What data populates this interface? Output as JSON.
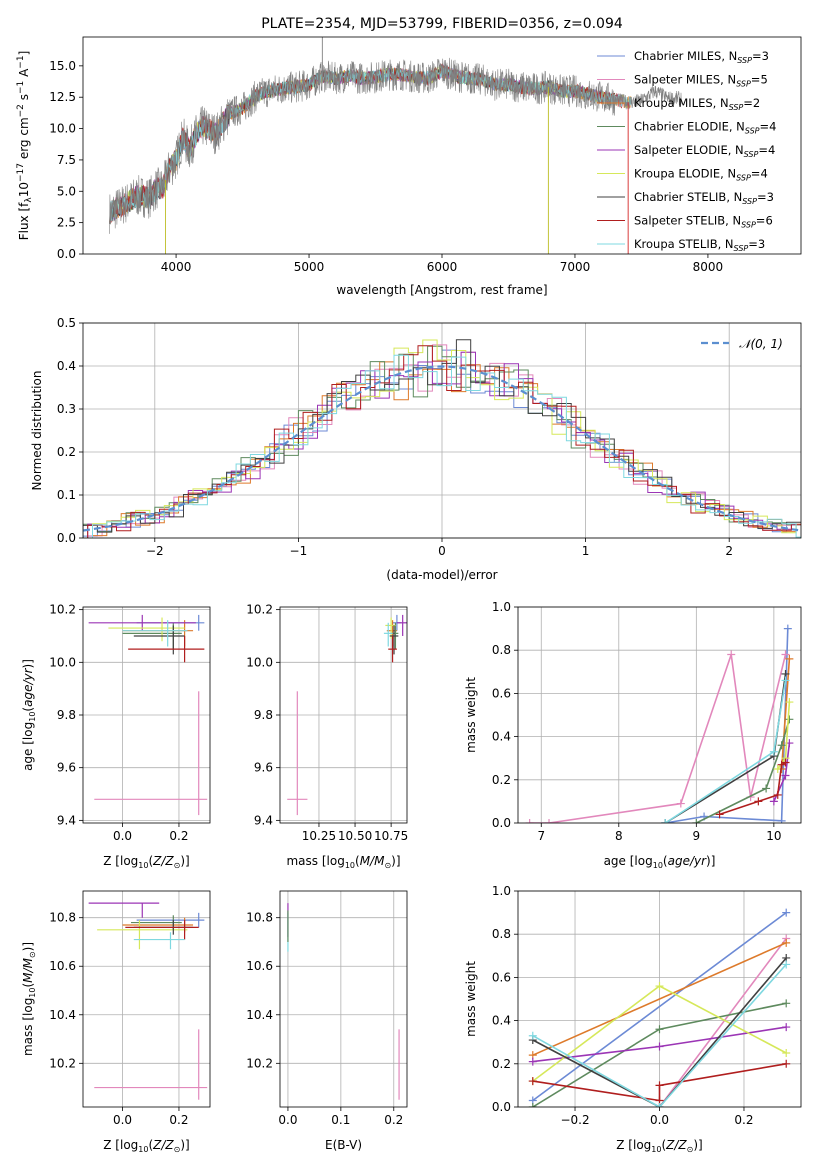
{
  "chart_data": [
    {
      "id": "spectrum",
      "type": "line",
      "title": "PLATE=2354, MJD=53799, FIBERID=0356, z=0.094",
      "xlabel": "wavelength [Angstrom, rest frame]",
      "ylabel": "Flux [f_λ 10^-17 erg cm^-2 s^-1 A^-1]",
      "xlim": [
        3300,
        8700
      ],
      "ylim": [
        0,
        17.3
      ],
      "xticks": [
        4000,
        5000,
        6000,
        7000,
        8000
      ],
      "yticks": [
        0.0,
        2.5,
        5.0,
        7.5,
        10.0,
        12.5,
        15.0
      ],
      "ytick_labels": [
        "0.0",
        "2.5",
        "5.0",
        "7.5",
        "10.0",
        "12.5",
        "15.0"
      ],
      "grid": false,
      "legend_position": "top-right",
      "data_series": {
        "name": "data",
        "color": "#808080"
      },
      "continuum_x": [
        3500,
        3550,
        3600,
        3650,
        3700,
        3750,
        3800,
        3850,
        3900,
        3950,
        4000,
        4050,
        4100,
        4150,
        4200,
        4300,
        4400,
        4500,
        4600,
        4700,
        4800,
        4900,
        5000,
        5100,
        5200,
        5300,
        5400,
        5500,
        5600,
        5700,
        5800,
        5900,
        6000,
        6100,
        6200,
        6300,
        6400,
        6500,
        6600,
        6700,
        6800,
        6900,
        7000,
        7100,
        7200,
        7300,
        7400,
        7500,
        7600,
        7700,
        7800
      ],
      "continuum_y": [
        3.3,
        3.6,
        3.9,
        4.2,
        4.6,
        4.6,
        4.5,
        5.2,
        5.3,
        6.8,
        7.5,
        9.3,
        8.3,
        9.5,
        10.2,
        9.6,
        11.2,
        11.6,
        12.6,
        13.0,
        13.2,
        13.3,
        13.5,
        14.2,
        14.0,
        14.2,
        14.0,
        14.1,
        14.3,
        14.3,
        14.1,
        14.0,
        14.6,
        14.2,
        14.0,
        13.9,
        13.5,
        13.5,
        13.3,
        13.2,
        13.3,
        13.0,
        13.0,
        12.7,
        12.5,
        12.3,
        12.1,
        12.2,
        13.0,
        12.4,
        12.4
      ],
      "spikes": [
        {
          "x": 5100,
          "y": 17.3,
          "color": "#808080"
        },
        {
          "x": 6800,
          "y": 0.0,
          "color": "#bcbd22"
        },
        {
          "x": 7400,
          "y": 0.0,
          "color": "#d62728"
        },
        {
          "x": 3920,
          "y": 0.0,
          "color": "#bcbd22"
        }
      ],
      "series": [
        {
          "name": "Chabrier MILES",
          "nssp": "3",
          "color": "#6c8ad5"
        },
        {
          "name": "Salpeter MILES",
          "nssp": "5",
          "color": "#e288bc"
        },
        {
          "name": "Kroupa MILES",
          "nssp": "2",
          "color": "#dd7a2b"
        },
        {
          "name": "Chabrier ELODIE",
          "nssp": "4",
          "color": "#5e8a5e"
        },
        {
          "name": "Salpeter ELODIE",
          "nssp": "4",
          "color": "#9b35b5"
        },
        {
          "name": "Kroupa ELODIE",
          "nssp": "4",
          "color": "#d6e85a"
        },
        {
          "name": "Chabrier STELIB",
          "nssp": "3",
          "color": "#404040"
        },
        {
          "name": "Salpeter STELIB",
          "nssp": "6",
          "color": "#b01e1e"
        },
        {
          "name": "Kroupa STELIB",
          "nssp": "3",
          "color": "#7fd8e0"
        }
      ]
    },
    {
      "id": "residuals",
      "type": "bar",
      "xlabel": "(data-model)/error",
      "ylabel": "Normed distribution",
      "xlim": [
        -2.5,
        2.5
      ],
      "ylim": [
        0,
        0.5
      ],
      "xticks": [
        -2,
        -1,
        0,
        1,
        2
      ],
      "xtick_labels": [
        "−2",
        "−1",
        "0",
        "1",
        "2"
      ],
      "yticks": [
        0.0,
        0.1,
        0.2,
        0.3,
        0.4,
        0.5
      ],
      "ytick_labels": [
        "0.0",
        "0.1",
        "0.2",
        "0.3",
        "0.4",
        "0.5"
      ],
      "grid": true,
      "legend_position": "top-right",
      "gaussian": {
        "label": "𝒩(0, 1)",
        "mean": 0,
        "sigma": 1,
        "color": "#5b8fd0"
      },
      "bin_width": 0.1
    },
    {
      "id": "age_vs_Z",
      "type": "scatter",
      "xlabel": "Z [log10(Z/Z⊙)]",
      "ylabel": "age  [log10(age/yr)]",
      "xlim": [
        -0.14,
        0.31
      ],
      "ylim": [
        9.39,
        10.21
      ],
      "xticks": [
        0.0,
        0.2
      ],
      "xtick_labels": [
        "0.0",
        "0.2"
      ],
      "yticks": [
        9.4,
        9.6,
        9.8,
        10.0,
        10.2
      ],
      "ytick_labels": [
        "9.4",
        "9.6",
        "9.8",
        "10.0",
        "10.2"
      ],
      "grid": true,
      "points": [
        {
          "x": 0.27,
          "y": 10.15,
          "xlo": 0.05,
          "xhi": 0.29,
          "ylo": 10.12,
          "yhi": 10.18,
          "color": "#6c8ad5"
        },
        {
          "x": 0.27,
          "y": 9.48,
          "xlo": -0.1,
          "xhi": 0.3,
          "ylo": 9.42,
          "yhi": 9.89,
          "color": "#e288bc"
        },
        {
          "x": 0.22,
          "y": 10.12,
          "xlo": 0.0,
          "xhi": 0.25,
          "ylo": 10.06,
          "yhi": 10.16,
          "color": "#dd7a2b"
        },
        {
          "x": 0.18,
          "y": 10.11,
          "xlo": 0.0,
          "xhi": 0.21,
          "ylo": 10.05,
          "yhi": 10.15,
          "color": "#5e8a5e"
        },
        {
          "x": 0.07,
          "y": 10.15,
          "xlo": -0.12,
          "xhi": 0.26,
          "ylo": 10.12,
          "yhi": 10.18,
          "color": "#9b35b5"
        },
        {
          "x": 0.14,
          "y": 10.13,
          "xlo": -0.05,
          "xhi": 0.22,
          "ylo": 10.08,
          "yhi": 10.17,
          "color": "#d6e85a"
        },
        {
          "x": 0.18,
          "y": 10.1,
          "xlo": 0.04,
          "xhi": 0.22,
          "ylo": 10.03,
          "yhi": 10.14,
          "color": "#404040"
        },
        {
          "x": 0.22,
          "y": 10.05,
          "xlo": 0.02,
          "xhi": 0.29,
          "ylo": 10.0,
          "yhi": 10.1,
          "color": "#b01e1e"
        },
        {
          "x": 0.16,
          "y": 10.12,
          "xlo": 0.0,
          "xhi": 0.23,
          "ylo": 10.06,
          "yhi": 10.16,
          "color": "#7fd8e0"
        }
      ]
    },
    {
      "id": "age_vs_mass",
      "type": "scatter",
      "xlabel": "mass [log10(M/M⊙)]",
      "ylabel": "",
      "xlim": [
        9.98,
        10.86
      ],
      "ylim": [
        9.39,
        10.21
      ],
      "xticks": [
        10.25,
        10.5,
        10.75
      ],
      "xtick_labels": [
        "10.25",
        "10.50",
        "10.75"
      ],
      "yticks": [
        9.4,
        9.6,
        9.8,
        10.0,
        10.2
      ],
      "ytick_labels": [
        "9.4",
        "9.6",
        "9.8",
        "10.0",
        "10.2"
      ],
      "grid": true,
      "points": [
        {
          "x": 10.79,
          "y": 10.15,
          "xlo": 10.76,
          "xhi": 10.82,
          "ylo": 10.12,
          "yhi": 10.18,
          "color": "#6c8ad5"
        },
        {
          "x": 10.1,
          "y": 9.48,
          "xlo": 10.03,
          "xhi": 10.17,
          "ylo": 9.42,
          "yhi": 9.89,
          "color": "#e288bc"
        },
        {
          "x": 10.76,
          "y": 10.12,
          "xlo": 10.72,
          "xhi": 10.79,
          "ylo": 10.06,
          "yhi": 10.16,
          "color": "#dd7a2b"
        },
        {
          "x": 10.78,
          "y": 10.11,
          "xlo": 10.75,
          "xhi": 10.8,
          "ylo": 10.05,
          "yhi": 10.15,
          "color": "#5e8a5e"
        },
        {
          "x": 10.83,
          "y": 10.15,
          "xlo": 10.79,
          "xhi": 10.86,
          "ylo": 10.1,
          "yhi": 10.18,
          "color": "#9b35b5"
        },
        {
          "x": 10.75,
          "y": 10.14,
          "xlo": 10.71,
          "xhi": 10.78,
          "ylo": 10.09,
          "yhi": 10.17,
          "color": "#d6e85a"
        },
        {
          "x": 10.77,
          "y": 10.1,
          "xlo": 10.74,
          "xhi": 10.8,
          "ylo": 10.03,
          "yhi": 10.14,
          "color": "#404040"
        },
        {
          "x": 10.76,
          "y": 10.05,
          "xlo": 10.73,
          "xhi": 10.79,
          "ylo": 10.0,
          "yhi": 10.1,
          "color": "#b01e1e"
        },
        {
          "x": 10.73,
          "y": 10.11,
          "xlo": 10.7,
          "xhi": 10.76,
          "ylo": 10.06,
          "yhi": 10.15,
          "color": "#7fd8e0"
        }
      ]
    },
    {
      "id": "massweight_vs_age",
      "type": "line",
      "xlabel": "age  [log10(age/yr)]",
      "ylabel": "mass weight",
      "xlim": [
        6.7,
        10.35
      ],
      "ylim": [
        0,
        1
      ],
      "xticks": [
        7,
        8,
        9,
        10
      ],
      "xtick_labels": [
        "7",
        "8",
        "9",
        "10"
      ],
      "yticks": [
        0.0,
        0.2,
        0.4,
        0.6,
        0.8,
        1.0
      ],
      "ytick_labels": [
        "0.0",
        "0.2",
        "0.4",
        "0.6",
        "0.8",
        "1.0"
      ],
      "grid": true,
      "series": [
        {
          "name": "Chabrier MILES",
          "color": "#6c8ad5",
          "x": [
            8.6,
            9.1,
            10.1,
            10.18
          ],
          "y": [
            0.0,
            0.03,
            0.01,
            0.9
          ]
        },
        {
          "name": "Salpeter MILES",
          "color": "#e288bc",
          "x": [
            6.85,
            7.1,
            8.8,
            9.45,
            9.7,
            10.15
          ],
          "y": [
            0.0,
            0.0,
            0.09,
            0.78,
            0.12,
            0.78
          ]
        },
        {
          "name": "Kroupa MILES",
          "color": "#dd7a2b",
          "x": [
            10.1,
            10.2
          ],
          "y": [
            0.25,
            0.76
          ]
        },
        {
          "name": "Chabrier ELODIE",
          "color": "#5e8a5e",
          "x": [
            9.0,
            9.9,
            10.1,
            10.2
          ],
          "y": [
            0.0,
            0.16,
            0.36,
            0.48
          ]
        },
        {
          "name": "Salpeter ELODIE",
          "color": "#9b35b5",
          "x": [
            10.0,
            10.15,
            10.2
          ],
          "y": [
            0.1,
            0.22,
            0.37
          ]
        },
        {
          "name": "Kroupa ELODIE",
          "color": "#d6e85a",
          "x": [
            10.05,
            10.15,
            10.2
          ],
          "y": [
            0.25,
            0.3,
            0.56
          ]
        },
        {
          "name": "Chabrier STELIB",
          "color": "#404040",
          "x": [
            8.6,
            10.0,
            10.15
          ],
          "y": [
            0.0,
            0.31,
            0.69
          ]
        },
        {
          "name": "Salpeter STELIB",
          "color": "#b01e1e",
          "x": [
            9.3,
            9.8,
            10.05,
            10.1,
            10.15
          ],
          "y": [
            0.04,
            0.1,
            0.13,
            0.27,
            0.28
          ]
        },
        {
          "name": "Kroupa STELIB",
          "color": "#7fd8e0",
          "x": [
            8.6,
            10.0,
            10.15
          ],
          "y": [
            0.0,
            0.33,
            0.66
          ]
        }
      ]
    },
    {
      "id": "mass_vs_Z",
      "type": "scatter",
      "xlabel": "Z [log10(Z/Z⊙)]",
      "ylabel": "mass [log10(M/M⊙)]",
      "xlim": [
        -0.14,
        0.31
      ],
      "ylim": [
        10.02,
        10.91
      ],
      "xticks": [
        0.0,
        0.2
      ],
      "xtick_labels": [
        "0.0",
        "0.2"
      ],
      "yticks": [
        10.2,
        10.4,
        10.6,
        10.8
      ],
      "ytick_labels": [
        "10.2",
        "10.4",
        "10.6",
        "10.8"
      ],
      "grid": true,
      "points": [
        {
          "x": 0.27,
          "y": 10.79,
          "xlo": 0.05,
          "xhi": 0.29,
          "ylo": 10.76,
          "yhi": 10.82,
          "color": "#6c8ad5"
        },
        {
          "x": 0.27,
          "y": 10.1,
          "xlo": -0.1,
          "xhi": 0.3,
          "ylo": 10.05,
          "yhi": 10.34,
          "color": "#e288bc"
        },
        {
          "x": 0.22,
          "y": 10.77,
          "xlo": 0.0,
          "xhi": 0.25,
          "ylo": 10.74,
          "yhi": 10.8,
          "color": "#dd7a2b"
        },
        {
          "x": 0.18,
          "y": 10.78,
          "xlo": 0.03,
          "xhi": 0.21,
          "ylo": 10.75,
          "yhi": 10.81,
          "color": "#5e8a5e"
        },
        {
          "x": 0.07,
          "y": 10.86,
          "xlo": -0.12,
          "xhi": 0.13,
          "ylo": 10.8,
          "yhi": 10.86,
          "color": "#9b35b5"
        },
        {
          "x": 0.06,
          "y": 10.75,
          "xlo": -0.09,
          "xhi": 0.23,
          "ylo": 10.67,
          "yhi": 10.79,
          "color": "#d6e85a"
        },
        {
          "x": 0.18,
          "y": 10.76,
          "xlo": 0.04,
          "xhi": 0.25,
          "ylo": 10.73,
          "yhi": 10.79,
          "color": "#404040"
        },
        {
          "x": 0.22,
          "y": 10.76,
          "xlo": 0.01,
          "xhi": 0.27,
          "ylo": 10.71,
          "yhi": 10.79,
          "color": "#b01e1e"
        },
        {
          "x": 0.17,
          "y": 10.71,
          "xlo": 0.04,
          "xhi": 0.22,
          "ylo": 10.67,
          "yhi": 10.74,
          "color": "#7fd8e0"
        }
      ]
    },
    {
      "id": "mass_vs_ebv",
      "type": "scatter",
      "xlabel": "E(B-V)",
      "ylabel": "",
      "xlim": [
        -0.015,
        0.225
      ],
      "ylim": [
        10.02,
        10.91
      ],
      "xticks": [
        0.0,
        0.1,
        0.2
      ],
      "xtick_labels": [
        "0.0",
        "0.1",
        "0.2"
      ],
      "yticks": [
        10.2,
        10.4,
        10.6,
        10.8
      ],
      "ytick_labels": [
        "10.2",
        "10.4",
        "10.6",
        "10.8"
      ],
      "grid": true,
      "points": [
        {
          "x": 0.0,
          "y": 10.79,
          "xlo": 0.0,
          "xhi": 0.0,
          "ylo": 10.72,
          "yhi": 10.86,
          "color": "#9b35b5"
        },
        {
          "x": 0.0,
          "y": 10.75,
          "xlo": 0.0,
          "xhi": 0.0,
          "ylo": 10.66,
          "yhi": 10.82,
          "color": "#7fd8e0"
        },
        {
          "x": 0.0,
          "y": 10.77,
          "xlo": 0.0,
          "xhi": 0.0,
          "ylo": 10.7,
          "yhi": 10.83,
          "color": "#5e8a5e"
        },
        {
          "x": 0.21,
          "y": 10.15,
          "xlo": 0.21,
          "xhi": 0.21,
          "ylo": 10.05,
          "yhi": 10.34,
          "color": "#e288bc"
        }
      ]
    },
    {
      "id": "massweight_vs_Z",
      "type": "line",
      "xlabel": "Z [log10(Z/Z⊙)]",
      "ylabel": "mass weight",
      "xlim": [
        -0.335,
        0.335
      ],
      "ylim": [
        0,
        1
      ],
      "xticks": [
        -0.2,
        0.0,
        0.2
      ],
      "xtick_labels": [
        "−0.2",
        "0.0",
        "0.2"
      ],
      "yticks": [
        0.0,
        0.2,
        0.4,
        0.6,
        0.8,
        1.0
      ],
      "ytick_labels": [
        "0.0",
        "0.2",
        "0.4",
        "0.6",
        "0.8",
        "1.0"
      ],
      "grid": true,
      "series": [
        {
          "name": "Chabrier MILES",
          "color": "#6c8ad5",
          "x": [
            -0.3,
            0.3
          ],
          "y": [
            0.03,
            0.9
          ]
        },
        {
          "name": "Salpeter MILES",
          "color": "#e288bc",
          "x": [
            0.0,
            0.3
          ],
          "y": [
            0.0,
            0.78
          ]
        },
        {
          "name": "Kroupa MILES",
          "color": "#dd7a2b",
          "x": [
            -0.3,
            0.3
          ],
          "y": [
            0.24,
            0.76
          ]
        },
        {
          "name": "Chabrier ELODIE",
          "color": "#5e8a5e",
          "x": [
            -0.3,
            0.0,
            0.3
          ],
          "y": [
            0.0,
            0.36,
            0.48
          ]
        },
        {
          "name": "Salpeter ELODIE",
          "color": "#9b35b5",
          "x": [
            -0.3,
            0.0,
            0.3
          ],
          "y": [
            0.21,
            0.28,
            0.37
          ]
        },
        {
          "name": "Kroupa ELODIE",
          "color": "#d6e85a",
          "x": [
            -0.3,
            0.0,
            0.3
          ],
          "y": [
            0.12,
            0.56,
            0.25
          ]
        },
        {
          "name": "Chabrier STELIB",
          "color": "#404040",
          "x": [
            -0.3,
            0.0,
            0.3
          ],
          "y": [
            0.31,
            0.0,
            0.69
          ]
        },
        {
          "name": "Salpeter STELIB",
          "color": "#b01e1e",
          "x": [
            -0.3,
            0.0,
            0.0,
            0.3
          ],
          "y": [
            0.12,
            0.03,
            0.1,
            0.2
          ]
        },
        {
          "name": "Kroupa STELIB",
          "color": "#7fd8e0",
          "x": [
            -0.3,
            0.0,
            0.3
          ],
          "y": [
            0.33,
            0.0,
            0.66
          ]
        }
      ]
    }
  ]
}
